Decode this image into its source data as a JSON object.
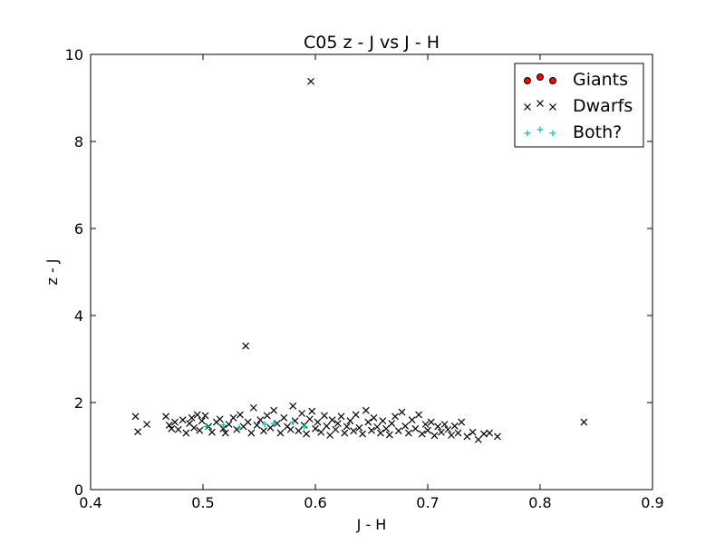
{
  "chart_data": {
    "type": "scatter",
    "title": "C05 z - J vs J - H",
    "xlabel": "J - H",
    "ylabel": "z - J",
    "xlim": [
      0.4,
      0.9
    ],
    "ylim": [
      0,
      10
    ],
    "xticks": [
      "0.4",
      "0.5",
      "0.6",
      "0.7",
      "0.8",
      "0.9"
    ],
    "yticks": [
      "0",
      "2",
      "4",
      "6",
      "8",
      "10"
    ],
    "grid": false,
    "legend_position": "top-right",
    "series": [
      {
        "name": "Giants",
        "marker": "circle",
        "color": "#ff0000",
        "points": []
      },
      {
        "name": "Dwarfs",
        "marker": "x",
        "color": "#000000",
        "points": [
          [
            0.596,
            9.38
          ],
          [
            0.538,
            3.3
          ],
          [
            0.839,
            1.55
          ],
          [
            0.44,
            1.68
          ],
          [
            0.442,
            1.33
          ],
          [
            0.45,
            1.5
          ],
          [
            0.467,
            1.68
          ],
          [
            0.47,
            1.48
          ],
          [
            0.472,
            1.4
          ],
          [
            0.475,
            1.55
          ],
          [
            0.478,
            1.38
          ],
          [
            0.482,
            1.6
          ],
          [
            0.485,
            1.3
          ],
          [
            0.488,
            1.52
          ],
          [
            0.49,
            1.65
          ],
          [
            0.492,
            1.42
          ],
          [
            0.495,
            1.72
          ],
          [
            0.497,
            1.36
          ],
          [
            0.499,
            1.58
          ],
          [
            0.502,
            1.7
          ],
          [
            0.505,
            1.45
          ],
          [
            0.508,
            1.32
          ],
          [
            0.512,
            1.55
          ],
          [
            0.515,
            1.62
          ],
          [
            0.518,
            1.4
          ],
          [
            0.52,
            1.3
          ],
          [
            0.523,
            1.5
          ],
          [
            0.527,
            1.65
          ],
          [
            0.53,
            1.38
          ],
          [
            0.533,
            1.72
          ],
          [
            0.536,
            1.45
          ],
          [
            0.54,
            1.55
          ],
          [
            0.543,
            1.3
          ],
          [
            0.545,
            1.88
          ],
          [
            0.548,
            1.48
          ],
          [
            0.551,
            1.6
          ],
          [
            0.554,
            1.35
          ],
          [
            0.557,
            1.7
          ],
          [
            0.56,
            1.42
          ],
          [
            0.563,
            1.82
          ],
          [
            0.566,
            1.52
          ],
          [
            0.569,
            1.3
          ],
          [
            0.572,
            1.65
          ],
          [
            0.575,
            1.45
          ],
          [
            0.578,
            1.38
          ],
          [
            0.58,
            1.92
          ],
          [
            0.582,
            1.58
          ],
          [
            0.585,
            1.35
          ],
          [
            0.588,
            1.75
          ],
          [
            0.59,
            1.48
          ],
          [
            0.592,
            1.28
          ],
          [
            0.595,
            1.62
          ],
          [
            0.597,
            1.8
          ],
          [
            0.6,
            1.4
          ],
          [
            0.602,
            1.55
          ],
          [
            0.605,
            1.32
          ],
          [
            0.608,
            1.7
          ],
          [
            0.61,
            1.46
          ],
          [
            0.613,
            1.25
          ],
          [
            0.615,
            1.6
          ],
          [
            0.618,
            1.38
          ],
          [
            0.62,
            1.52
          ],
          [
            0.623,
            1.68
          ],
          [
            0.626,
            1.3
          ],
          [
            0.628,
            1.45
          ],
          [
            0.631,
            1.58
          ],
          [
            0.634,
            1.35
          ],
          [
            0.636,
            1.72
          ],
          [
            0.639,
            1.42
          ],
          [
            0.642,
            1.28
          ],
          [
            0.645,
            1.82
          ],
          [
            0.647,
            1.55
          ],
          [
            0.65,
            1.36
          ],
          [
            0.652,
            1.65
          ],
          [
            0.655,
            1.44
          ],
          [
            0.658,
            1.3
          ],
          [
            0.66,
            1.58
          ],
          [
            0.663,
            1.4
          ],
          [
            0.666,
            1.26
          ],
          [
            0.668,
            1.52
          ],
          [
            0.671,
            1.68
          ],
          [
            0.674,
            1.35
          ],
          [
            0.677,
            1.78
          ],
          [
            0.68,
            1.46
          ],
          [
            0.683,
            1.3
          ],
          [
            0.686,
            1.6
          ],
          [
            0.689,
            1.4
          ],
          [
            0.692,
            1.72
          ],
          [
            0.695,
            1.28
          ],
          [
            0.698,
            1.5
          ],
          [
            0.7,
            1.36
          ],
          [
            0.703,
            1.55
          ],
          [
            0.706,
            1.24
          ],
          [
            0.709,
            1.45
          ],
          [
            0.712,
            1.32
          ],
          [
            0.715,
            1.5
          ],
          [
            0.718,
            1.38
          ],
          [
            0.721,
            1.25
          ],
          [
            0.724,
            1.46
          ],
          [
            0.727,
            1.3
          ],
          [
            0.73,
            1.55
          ],
          [
            0.735,
            1.22
          ],
          [
            0.74,
            1.32
          ],
          [
            0.745,
            1.15
          ],
          [
            0.75,
            1.28
          ],
          [
            0.755,
            1.3
          ],
          [
            0.762,
            1.22
          ]
        ]
      },
      {
        "name": "Both?",
        "marker": "plus",
        "color": "#00bfbf",
        "points": [
          [
            0.503,
            1.45
          ],
          [
            0.518,
            1.48
          ],
          [
            0.532,
            1.42
          ],
          [
            0.555,
            1.5
          ],
          [
            0.563,
            1.52
          ],
          [
            0.58,
            1.55
          ],
          [
            0.59,
            1.45
          ]
        ]
      }
    ]
  }
}
